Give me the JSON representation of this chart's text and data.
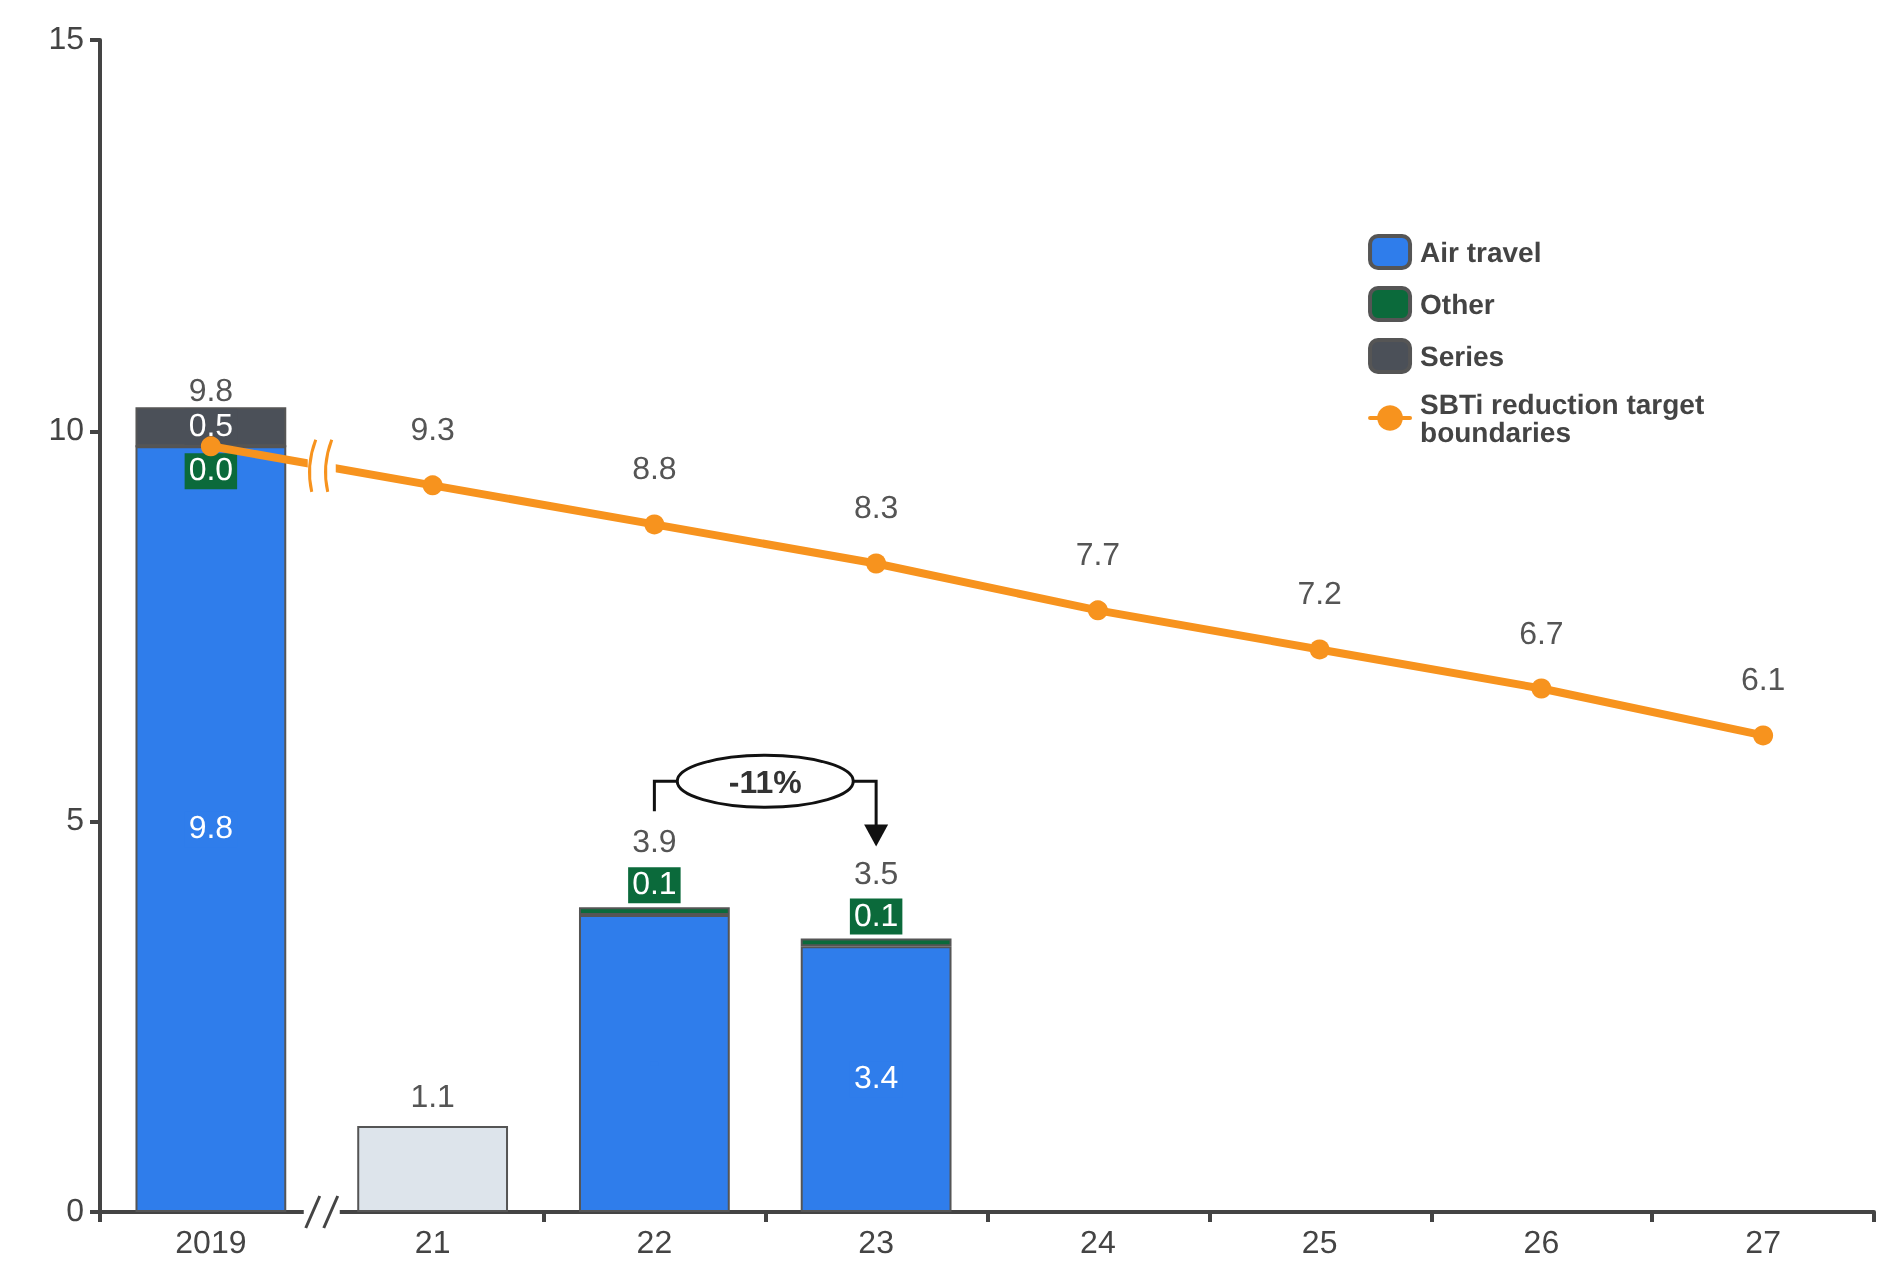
{
  "chart_data": {
    "type": "bar",
    "categories": [
      "2019",
      "21",
      "22",
      "23",
      "24",
      "25",
      "26",
      "27"
    ],
    "stacked": true,
    "series": [
      {
        "name": "Air travel",
        "color": "#2f7deb",
        "values": [
          9.8,
          null,
          3.8,
          3.4,
          null,
          null,
          null,
          null
        ],
        "value_labels": [
          "9.8",
          null,
          null,
          "3.4",
          null,
          null,
          null,
          null
        ]
      },
      {
        "name": "Other",
        "color": "#0b6a3b",
        "values": [
          0.0,
          null,
          0.1,
          0.1,
          null,
          null,
          null,
          null
        ],
        "value_labels": [
          "0.0",
          null,
          "0.1",
          "0.1",
          null,
          null,
          null,
          null
        ]
      },
      {
        "name": "Series",
        "color": "#4b5058",
        "values": [
          0.5,
          null,
          null,
          null,
          null,
          null,
          null,
          null
        ],
        "value_labels": [
          "0.5",
          null,
          null,
          null,
          null,
          null,
          null,
          null
        ]
      },
      {
        "color": "#dde4eb",
        "values": [
          null,
          1.1,
          null,
          null,
          null,
          null,
          null,
          null
        ],
        "value_labels": [
          null,
          "1.1",
          null,
          null,
          null,
          null,
          null,
          null
        ]
      },
      {
        "type": "line",
        "name": "SBTi reduction target boundaries",
        "color": "#f7931e",
        "values": [
          9.8,
          9.3,
          8.8,
          8.3,
          7.7,
          7.2,
          6.7,
          6.1
        ],
        "value_labels": [
          "9.8",
          "9.3",
          "8.8",
          "8.3",
          "7.7",
          "7.2",
          "6.7",
          "6.1"
        ]
      }
    ],
    "marker": "circle",
    "totals": [
      null,
      null,
      "3.9",
      "3.5",
      null,
      null,
      null,
      null
    ],
    "ylim": [
      0,
      15
    ],
    "yticks": [
      0,
      5,
      10,
      15
    ],
    "grid": false,
    "legend": "top right",
    "annotations": [
      "-11%"
    ]
  }
}
